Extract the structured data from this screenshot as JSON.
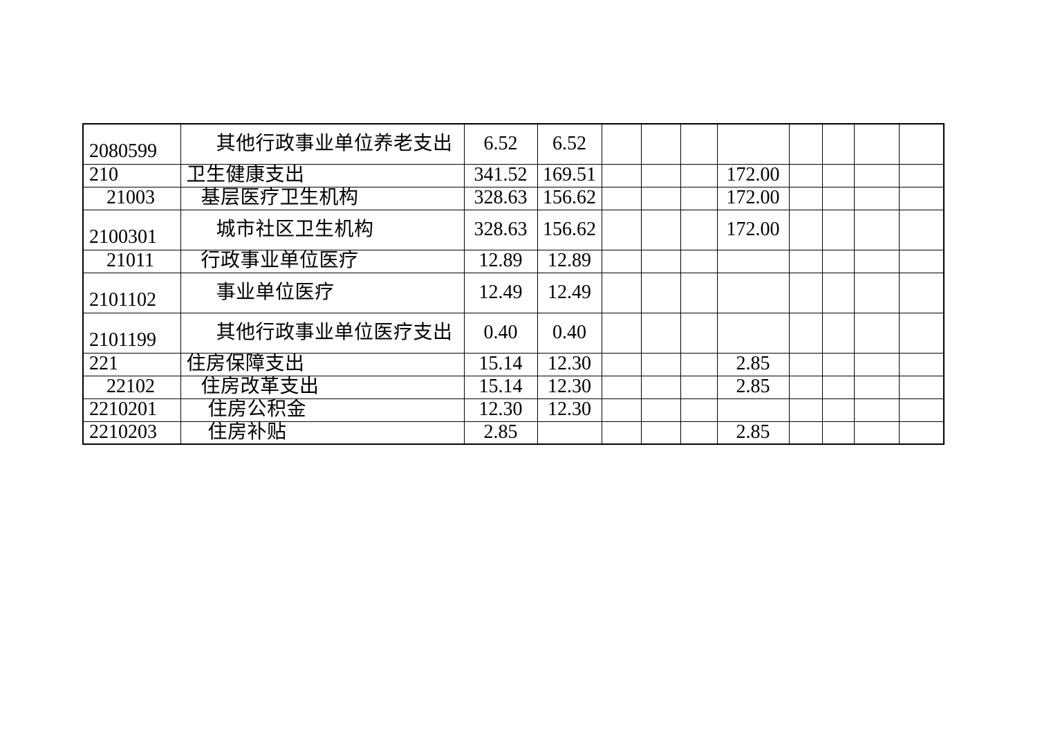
{
  "page": {
    "background_color": "#ffffff",
    "table_border_color": "#000000",
    "text_color": "#000000"
  },
  "budget_table": {
    "description": "continuation page of a government budget expenditure table (functional classification), no visible header row",
    "amount_columns_count": 10,
    "rows": [
      {
        "code": "2080599",
        "code_level": 0,
        "desc": "其他行政事业单位养老支出",
        "desc_level": 3,
        "two_line": true,
        "values": [
          "6.52",
          "6.52",
          "",
          "",
          "",
          "",
          "",
          "",
          "",
          ""
        ]
      },
      {
        "code": "210",
        "code_level": 0,
        "desc": "卫生健康支出",
        "desc_level": 0,
        "two_line": false,
        "values": [
          "341.52",
          "169.51",
          "",
          "",
          "",
          "172.00",
          "",
          "",
          "",
          ""
        ]
      },
      {
        "code": "21003",
        "code_level": 1,
        "desc": "基层医疗卫生机构",
        "desc_level": 1,
        "two_line": false,
        "values": [
          "328.63",
          "156.62",
          "",
          "",
          "",
          "172.00",
          "",
          "",
          "",
          ""
        ]
      },
      {
        "code": "2100301",
        "code_level": 0,
        "desc": "城市社区卫生机构",
        "desc_level": 3,
        "two_line": true,
        "values": [
          "328.63",
          "156.62",
          "",
          "",
          "",
          "172.00",
          "",
          "",
          "",
          ""
        ]
      },
      {
        "code": "21011",
        "code_level": 1,
        "desc": "行政事业单位医疗",
        "desc_level": 1,
        "two_line": false,
        "values": [
          "12.89",
          "12.89",
          "",
          "",
          "",
          "",
          "",
          "",
          "",
          ""
        ]
      },
      {
        "code": "2101102",
        "code_level": 0,
        "desc": "事业单位医疗",
        "desc_level": 3,
        "two_line": true,
        "values": [
          "12.49",
          "12.49",
          "",
          "",
          "",
          "",
          "",
          "",
          "",
          ""
        ]
      },
      {
        "code": "2101199",
        "code_level": 0,
        "desc": "其他行政事业单位医疗支出",
        "desc_level": 3,
        "two_line": true,
        "values": [
          "0.40",
          "0.40",
          "",
          "",
          "",
          "",
          "",
          "",
          "",
          ""
        ]
      },
      {
        "code": "221",
        "code_level": 0,
        "desc": "住房保障支出",
        "desc_level": 0,
        "two_line": false,
        "values": [
          "15.14",
          "12.30",
          "",
          "",
          "",
          "2.85",
          "",
          "",
          "",
          ""
        ]
      },
      {
        "code": "22102",
        "code_level": 1,
        "desc": "住房改革支出",
        "desc_level": 1,
        "two_line": false,
        "values": [
          "15.14",
          "12.30",
          "",
          "",
          "",
          "2.85",
          "",
          "",
          "",
          ""
        ]
      },
      {
        "code": "2210201",
        "code_level": 0,
        "desc": "住房公积金",
        "desc_level": 2,
        "two_line": false,
        "values": [
          "12.30",
          "12.30",
          "",
          "",
          "",
          "",
          "",
          "",
          "",
          ""
        ]
      },
      {
        "code": "2210203",
        "code_level": 0,
        "desc": "住房补贴",
        "desc_level": 2,
        "two_line": false,
        "values": [
          "2.85",
          "",
          "",
          "",
          "",
          "2.85",
          "",
          "",
          "",
          ""
        ]
      }
    ]
  }
}
